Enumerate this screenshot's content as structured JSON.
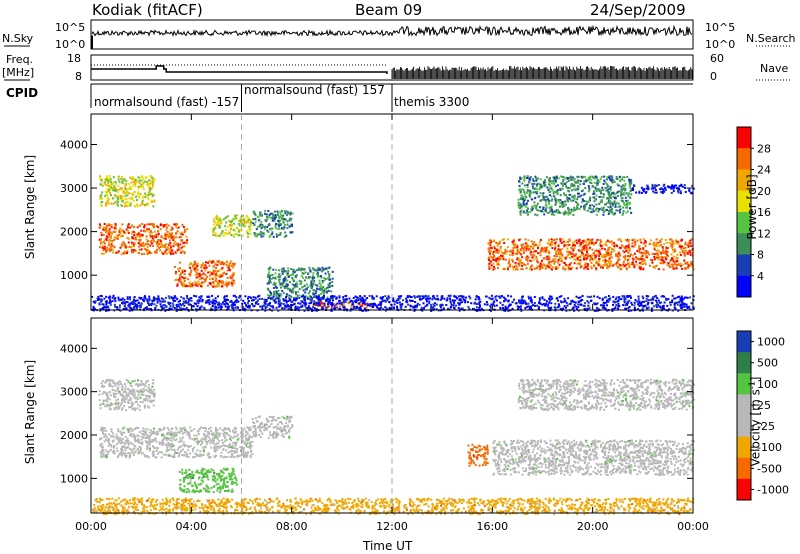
{
  "header": {
    "radar": "Kodiak (fitACF)",
    "beam": "Beam 09",
    "date": "24/Sep/2009"
  },
  "noise_panel": {
    "left_label": "N.Sky",
    "right_label": "N.Search",
    "left_ticks": [
      "10^5",
      "10^0"
    ],
    "right_ticks": [
      "10^5",
      "10^0"
    ],
    "left_line_style": "solid",
    "right_line_style": "dotted"
  },
  "freq_panel": {
    "left_label_top": "Freq.",
    "left_label_bottom": "[MHz]",
    "right_label": "Nave",
    "left_ticks": [
      "18",
      "8"
    ],
    "right_ticks": [
      "60",
      "0"
    ]
  },
  "cpid": {
    "label": "CPID",
    "segments": [
      {
        "text": "normalsound (fast) -157",
        "start": 0,
        "end": 6
      },
      {
        "text": "normalsound (fast) 157",
        "start": 6,
        "end": 12
      },
      {
        "text": "themis 3300",
        "start": 12,
        "end": 24
      }
    ]
  },
  "chart_data": [
    {
      "type": "heatmap",
      "quantity": "Power",
      "ylabel": "Slant Range [km]",
      "y_ticks": [
        "1000",
        "2000",
        "3000",
        "4000"
      ],
      "y_tick_values": [
        1000,
        2000,
        3000,
        4000
      ],
      "ylim": [
        200,
        4700
      ],
      "xlim": [
        0,
        24
      ],
      "colorbar_label": "Power [dB]",
      "colorbar_ticks": [
        "28",
        "24",
        "20",
        "16",
        "12",
        "8",
        "4"
      ],
      "colorbar_colors": [
        "#ff0000",
        "#f86a00",
        "#f0a800",
        "#e8e000",
        "#55c440",
        "#3c8f5a",
        "#1a3eb8",
        "#0000ff"
      ],
      "regions": [
        {
          "t0": 0.3,
          "t1": 3.8,
          "r0": 1500,
          "r1": 2200,
          "class": 3
        },
        {
          "t0": 3.3,
          "t1": 5.7,
          "r0": 750,
          "r1": 1350,
          "class": 3
        },
        {
          "t0": 4.8,
          "t1": 6.4,
          "r0": 1900,
          "r1": 2400,
          "class": 2
        },
        {
          "t0": 6.4,
          "t1": 8.0,
          "r0": 1900,
          "r1": 2500,
          "class": 1
        },
        {
          "t0": 7.0,
          "t1": 9.6,
          "r0": 450,
          "r1": 1200,
          "class": 1
        },
        {
          "t0": 8.8,
          "t1": 11.2,
          "r0": 270,
          "r1": 420,
          "class": 3
        },
        {
          "t0": 0.0,
          "t1": 24.0,
          "r0": 200,
          "r1": 550,
          "class": 0
        },
        {
          "t0": 15.8,
          "t1": 24.0,
          "r0": 1150,
          "r1": 1850,
          "class": 3
        },
        {
          "t0": 17.0,
          "t1": 21.5,
          "r0": 2400,
          "r1": 3300,
          "class": 1
        },
        {
          "t0": 21.5,
          "t1": 24.0,
          "r0": 2900,
          "r1": 3100,
          "class": 0
        },
        {
          "t0": 0.3,
          "t1": 2.5,
          "r0": 2600,
          "r1": 3300,
          "class": 2
        }
      ]
    },
    {
      "type": "heatmap",
      "quantity": "Velocity",
      "ylabel": "Slant Range [km]",
      "y_ticks": [
        "1000",
        "2000",
        "3000",
        "4000"
      ],
      "y_tick_values": [
        1000,
        2000,
        3000,
        4000
      ],
      "ylim": [
        200,
        4700
      ],
      "xlim": [
        0,
        24
      ],
      "x_ticks": [
        "00:00",
        "04:00",
        "08:00",
        "12:00",
        "16:00",
        "20:00",
        "00:00"
      ],
      "x_tick_values": [
        0,
        4,
        8,
        12,
        16,
        20,
        24
      ],
      "xlabel": "Time UT",
      "colorbar_label": "Velocity [m s",
      "colorbar_label_sup": "-1",
      "colorbar_label_end": "]",
      "colorbar_ticks": [
        "1000",
        "500",
        "100",
        "25",
        "-25",
        "-100",
        "-500",
        "-1000"
      ],
      "colorbar_colors": [
        "#1a3eb8",
        "#2e7f4a",
        "#55c440",
        "#b8b8b8",
        "#b8b8b8",
        "#f0a800",
        "#f86a00",
        "#ff0000"
      ],
      "regions": [
        {
          "t0": 0.3,
          "t1": 6.4,
          "r0": 1500,
          "r1": 2200,
          "class": 3
        },
        {
          "t0": 6.4,
          "t1": 8.0,
          "r0": 1950,
          "r1": 2450,
          "class": 3
        },
        {
          "t0": 3.5,
          "t1": 5.8,
          "r0": 700,
          "r1": 1250,
          "class": 2
        },
        {
          "t0": 0.0,
          "t1": 24.0,
          "r0": 200,
          "r1": 560,
          "class": 5
        },
        {
          "t0": 16.0,
          "t1": 24.0,
          "r0": 1100,
          "r1": 1900,
          "class": 3
        },
        {
          "t0": 15.0,
          "t1": 15.8,
          "r0": 1300,
          "r1": 1800,
          "class": 6
        },
        {
          "t0": 17.0,
          "t1": 24.0,
          "r0": 2600,
          "r1": 3300,
          "class": 3
        },
        {
          "t0": 0.3,
          "t1": 2.5,
          "r0": 2600,
          "r1": 3300,
          "class": 4
        }
      ]
    }
  ]
}
